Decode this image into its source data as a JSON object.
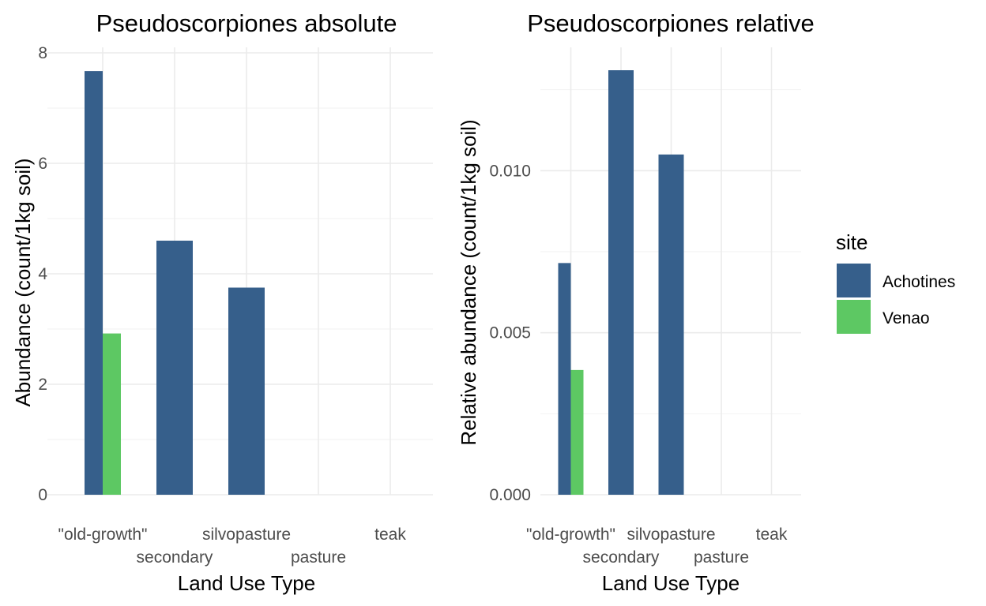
{
  "legend": {
    "title": "site",
    "entries": [
      {
        "label": "Achotines",
        "color": "#365f8b"
      },
      {
        "label": "Venao",
        "color": "#5dc863"
      }
    ]
  },
  "chart_data": [
    {
      "type": "bar",
      "title": "Pseudoscorpiones absolute",
      "xlabel": "Land Use Type",
      "ylabel": "Abundance (count/1kg soil)",
      "categories": [
        "\"old-growth\"",
        "secondary",
        "silvopasture",
        "pasture",
        "teak"
      ],
      "ylim": [
        0,
        8
      ],
      "yticks": [
        0,
        2,
        4,
        6,
        8
      ],
      "ytick_labels": [
        "0",
        "2",
        "4",
        "6",
        "8"
      ],
      "grid": true,
      "series": [
        {
          "name": "Achotines",
          "values": [
            7.67,
            4.6,
            3.75,
            0,
            0
          ]
        },
        {
          "name": "Venao",
          "values": [
            2.92,
            null,
            null,
            null,
            null
          ]
        }
      ]
    },
    {
      "type": "bar",
      "title": "Pseudoscorpiones relative",
      "xlabel": "Land Use Type",
      "ylabel": "Relative abundance (count/1kg soil)",
      "categories": [
        "\"old-growth\"",
        "secondary",
        "silvopasture",
        "pasture",
        "teak"
      ],
      "ylim": [
        0,
        0.0131
      ],
      "yticks": [
        0,
        0.005,
        0.01
      ],
      "ytick_labels": [
        "0.000",
        "0.005",
        "0.010"
      ],
      "grid": true,
      "series": [
        {
          "name": "Achotines",
          "values": [
            0.00715,
            0.0131,
            0.0105,
            0,
            0
          ]
        },
        {
          "name": "Venao",
          "values": [
            0.00385,
            null,
            null,
            null,
            null
          ]
        }
      ]
    }
  ]
}
